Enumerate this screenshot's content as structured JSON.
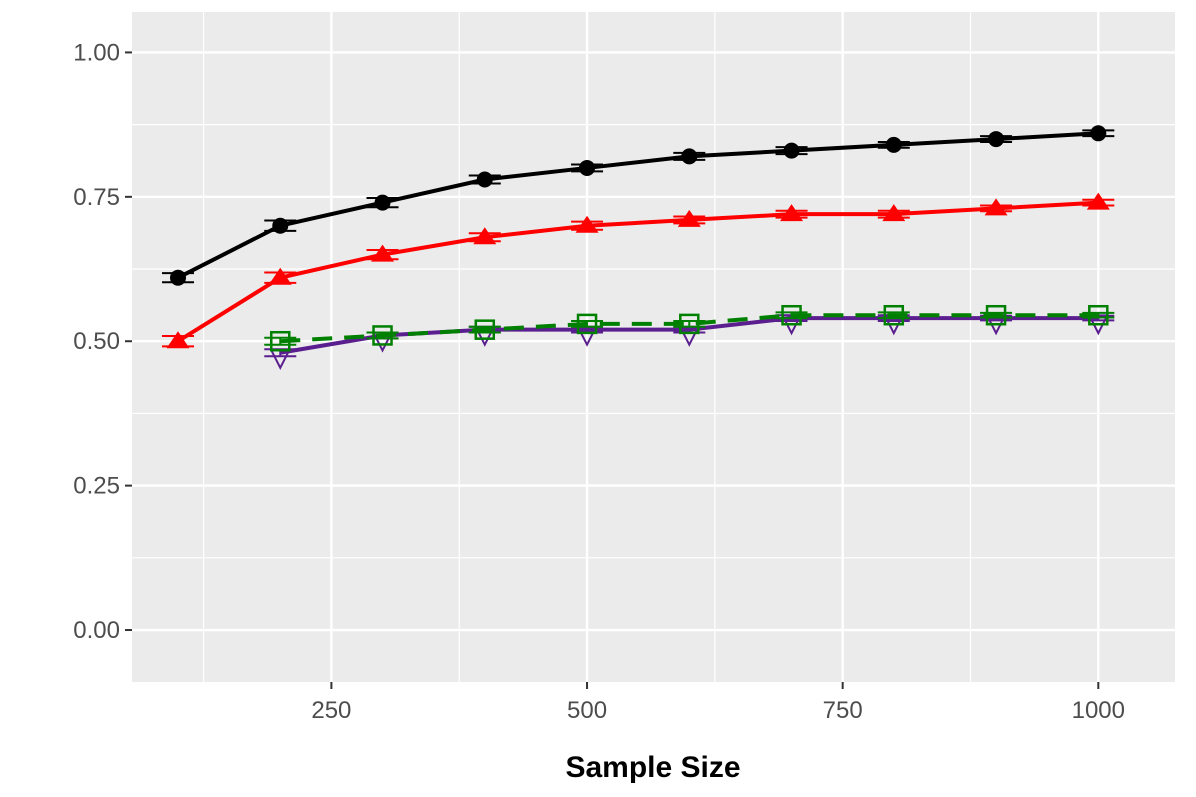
{
  "chart_data": {
    "type": "line",
    "title": "",
    "xlabel": "Sample Size",
    "ylabel": "",
    "xlim": [
      55,
      1075
    ],
    "ylim": [
      -0.09,
      1.07
    ],
    "x_ticks": [
      250,
      500,
      750,
      1000
    ],
    "x_tick_labels": [
      "250",
      "500",
      "750",
      "1000"
    ],
    "y_ticks": [
      0,
      0.25,
      0.5,
      0.75,
      1
    ],
    "y_tick_labels": [
      "0.00",
      "0.25",
      "0.50",
      "0.75",
      "1.00"
    ],
    "grid": true,
    "legend": "none",
    "series": [
      {
        "color": "#000000",
        "marker": "circle",
        "line": "solid",
        "x": [
          100,
          200,
          300,
          400,
          500,
          600,
          700,
          800,
          900,
          1000
        ],
        "y": [
          0.61,
          0.7,
          0.74,
          0.78,
          0.8,
          0.82,
          0.83,
          0.84,
          0.85,
          0.86
        ],
        "err": [
          0.008,
          0.009,
          0.008,
          0.007,
          0.006,
          0.006,
          0.006,
          0.005,
          0.005,
          0.005
        ]
      },
      {
        "color": "#ff0000",
        "marker": "triangle-up",
        "line": "solid",
        "x": [
          100,
          200,
          300,
          400,
          500,
          600,
          700,
          800,
          900,
          1000
        ],
        "y": [
          0.5,
          0.61,
          0.65,
          0.68,
          0.7,
          0.71,
          0.72,
          0.72,
          0.73,
          0.74
        ],
        "err": [
          0.009,
          0.009,
          0.008,
          0.007,
          0.007,
          0.006,
          0.006,
          0.006,
          0.005,
          0.005
        ]
      },
      {
        "color": "#5b1e8f",
        "marker": "triangle-down-open",
        "line": "solid",
        "x": [
          200,
          300,
          400,
          500,
          600,
          700,
          800,
          900,
          1000
        ],
        "y": [
          0.48,
          0.51,
          0.52,
          0.52,
          0.52,
          0.54,
          0.54,
          0.54,
          0.54
        ],
        "err": [
          0.006,
          0.005,
          0.005,
          0.005,
          0.005,
          0.005,
          0.005,
          0.004,
          0.004
        ]
      },
      {
        "color": "#008000",
        "marker": "square-open",
        "line": "dashed",
        "x": [
          200,
          300,
          400,
          500,
          600,
          700,
          800,
          900,
          1000
        ],
        "y": [
          0.5,
          0.51,
          0.52,
          0.53,
          0.53,
          0.545,
          0.545,
          0.545,
          0.545
        ],
        "err": [
          0.006,
          0.005,
          0.005,
          0.005,
          0.005,
          0.005,
          0.005,
          0.004,
          0.004
        ]
      }
    ],
    "colors": {
      "panel": "#ebebeb",
      "grid": "#ffffff",
      "tick_text": "#4d4d4d",
      "tick_mark": "#333333"
    }
  }
}
